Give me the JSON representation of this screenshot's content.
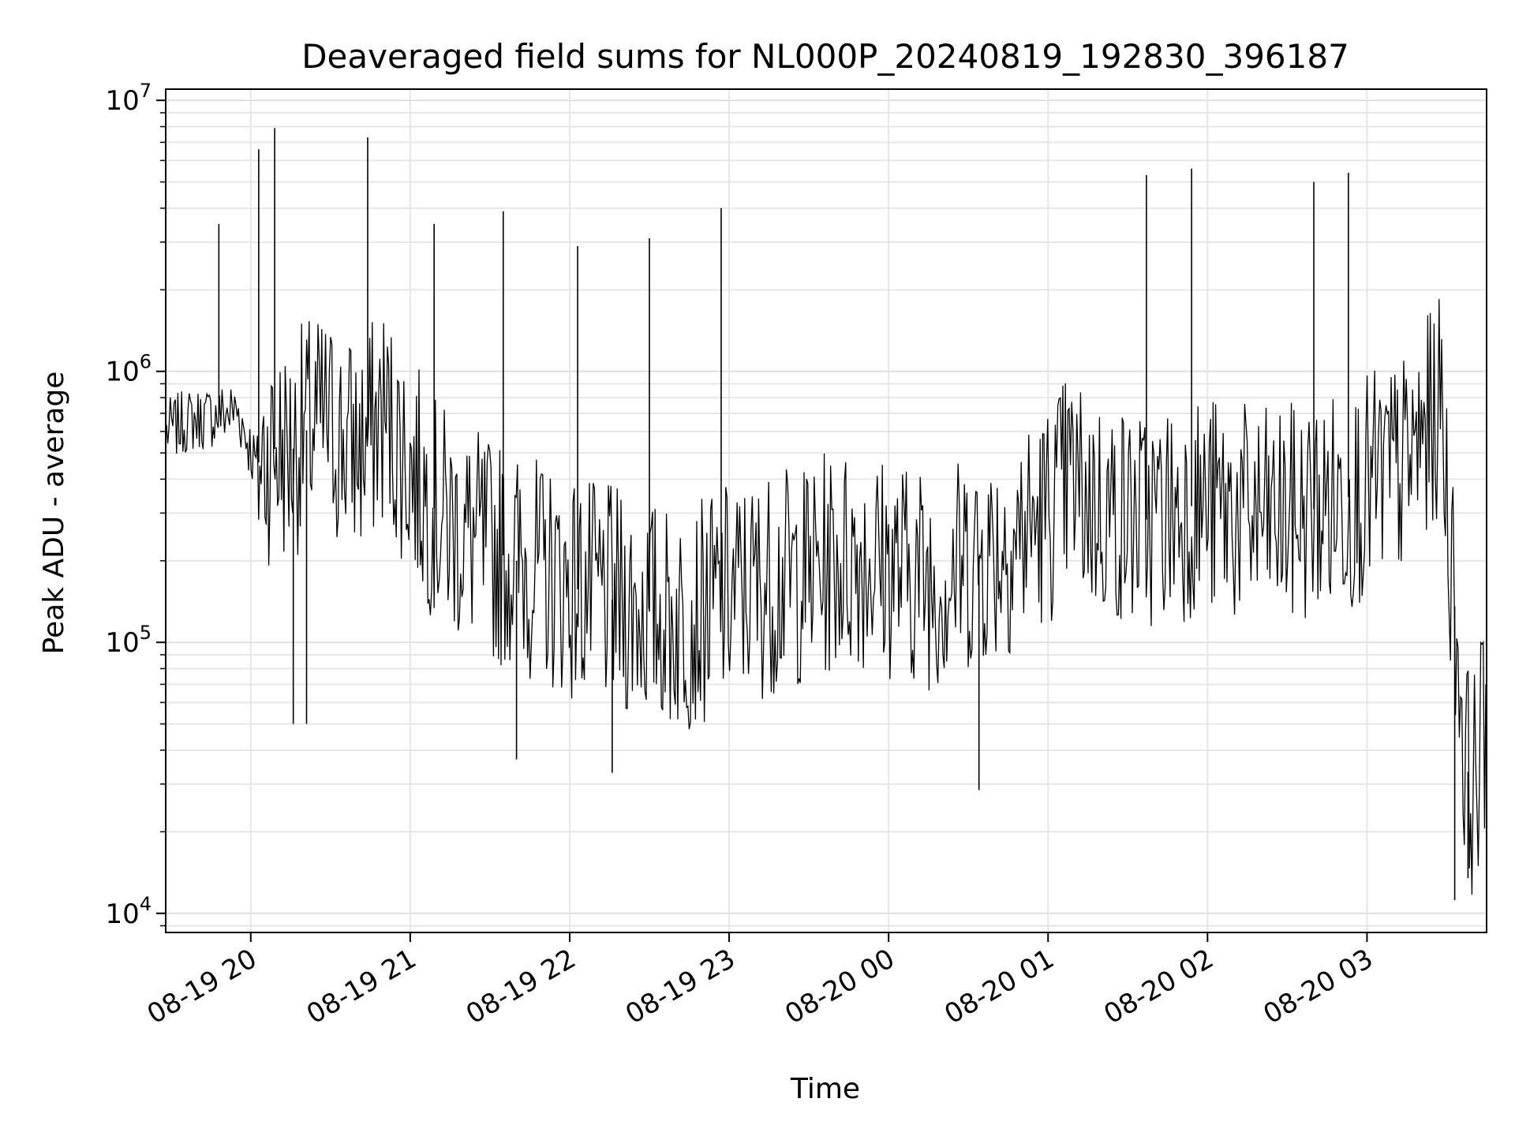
{
  "chart_data": {
    "type": "line",
    "title": "Deaveraged field sums for NL000P_20240819_192830_396187",
    "xlabel": "Time",
    "ylabel": "Peak ADU - average",
    "y_scale": "log",
    "ylim": [
      8500,
      11000000
    ],
    "xlim": [
      "2024-08-19 19:28",
      "2024-08-20 03:45"
    ],
    "x_ticks": [
      {
        "time": "2024-08-19 20:00",
        "label": "08-19 20"
      },
      {
        "time": "2024-08-19 21:00",
        "label": "08-19 21"
      },
      {
        "time": "2024-08-19 22:00",
        "label": "08-19 22"
      },
      {
        "time": "2024-08-19 23:00",
        "label": "08-19 23"
      },
      {
        "time": "2024-08-20 00:00",
        "label": "08-20 00"
      },
      {
        "time": "2024-08-20 01:00",
        "label": "08-20 01"
      },
      {
        "time": "2024-08-20 02:00",
        "label": "08-20 02"
      },
      {
        "time": "2024-08-20 03:00",
        "label": "08-20 03"
      }
    ],
    "y_ticks": [
      {
        "value": 10000,
        "base": "10",
        "exp": "4"
      },
      {
        "value": 100000,
        "base": "10",
        "exp": "5"
      },
      {
        "value": 1000000,
        "base": "10",
        "exp": "6"
      },
      {
        "value": 10000000,
        "base": "10",
        "exp": "7"
      }
    ],
    "grid": true,
    "line_color": "#000000",
    "series": [
      {
        "x": [
          "2024-08-19 19:28",
          "2024-08-19 19:35",
          "2024-08-19 19:45",
          "2024-08-19 19:50",
          "2024-08-19 19:55",
          "2024-08-19 20:02",
          "2024-08-19 20:08",
          "2024-08-19 20:15",
          "2024-08-19 20:20",
          "2024-08-19 20:28",
          "2024-08-19 20:35",
          "2024-08-19 20:42",
          "2024-08-19 20:50",
          "2024-08-19 21:00",
          "2024-08-19 21:10",
          "2024-08-19 21:20",
          "2024-08-19 21:30",
          "2024-08-19 21:40",
          "2024-08-19 21:50",
          "2024-08-19 22:00",
          "2024-08-19 22:10",
          "2024-08-19 22:20",
          "2024-08-19 22:30",
          "2024-08-19 22:40",
          "2024-08-19 22:50",
          "2024-08-19 23:00",
          "2024-08-19 23:10",
          "2024-08-19 23:20",
          "2024-08-19 23:30",
          "2024-08-19 23:40",
          "2024-08-19 23:50",
          "2024-08-20 00:00",
          "2024-08-20 00:10",
          "2024-08-20 00:20",
          "2024-08-20 00:30",
          "2024-08-20 00:40",
          "2024-08-20 00:50",
          "2024-08-20 01:00",
          "2024-08-20 01:08",
          "2024-08-20 01:15",
          "2024-08-20 01:25",
          "2024-08-20 01:35",
          "2024-08-20 01:45",
          "2024-08-20 01:55",
          "2024-08-20 02:05",
          "2024-08-20 02:15",
          "2024-08-20 02:25",
          "2024-08-20 02:35",
          "2024-08-20 02:45",
          "2024-08-20 02:55",
          "2024-08-20 03:05",
          "2024-08-20 03:15",
          "2024-08-20 03:22",
          "2024-08-20 03:28",
          "2024-08-20 03:31",
          "2024-08-20 03:34",
          "2024-08-20 03:37",
          "2024-08-20 03:40",
          "2024-08-20 03:43",
          "2024-08-20 03:45"
        ],
        "y": [
          600000,
          650000,
          680000,
          700000,
          720000,
          450000,
          520000,
          500000,
          600000,
          650000,
          550000,
          520000,
          700000,
          450000,
          300000,
          250000,
          220000,
          200000,
          180000,
          160000,
          150000,
          140000,
          130000,
          120000,
          130000,
          150000,
          160000,
          170000,
          180000,
          200000,
          210000,
          190000,
          180000,
          170000,
          200000,
          220000,
          250000,
          300000,
          400000,
          330000,
          300000,
          280000,
          300000,
          320000,
          310000,
          290000,
          280000,
          300000,
          320000,
          350000,
          400000,
          450000,
          600000,
          750000,
          250000,
          100000,
          35000,
          30000,
          40000,
          60000
        ]
      }
    ],
    "spikes": [
      {
        "x": "2024-08-19 19:48",
        "y": 3500000
      },
      {
        "x": "2024-08-19 20:03",
        "y": 6600000
      },
      {
        "x": "2024-08-19 20:09",
        "y": 7900000
      },
      {
        "x": "2024-08-19 20:44",
        "y": 7300000
      },
      {
        "x": "2024-08-19 21:09",
        "y": 3500000
      },
      {
        "x": "2024-08-19 21:35",
        "y": 3900000
      },
      {
        "x": "2024-08-19 22:03",
        "y": 2900000
      },
      {
        "x": "2024-08-19 22:30",
        "y": 3100000
      },
      {
        "x": "2024-08-19 22:57",
        "y": 4000000
      },
      {
        "x": "2024-08-20 01:37",
        "y": 5300000
      },
      {
        "x": "2024-08-20 01:54",
        "y": 5600000
      },
      {
        "x": "2024-08-20 02:40",
        "y": 5000000
      },
      {
        "x": "2024-08-20 02:53",
        "y": 5400000
      }
    ],
    "dips": [
      {
        "x": "2024-08-19 20:16",
        "y": 50000
      },
      {
        "x": "2024-08-19 20:21",
        "y": 50000
      },
      {
        "x": "2024-08-19 21:40",
        "y": 37000
      },
      {
        "x": "2024-08-19 22:16",
        "y": 33000
      },
      {
        "x": "2024-08-20 00:34",
        "y": 28500
      },
      {
        "x": "2024-08-20 03:33",
        "y": 11200
      },
      {
        "x": "2024-08-20 03:38",
        "y": 13500
      }
    ]
  }
}
